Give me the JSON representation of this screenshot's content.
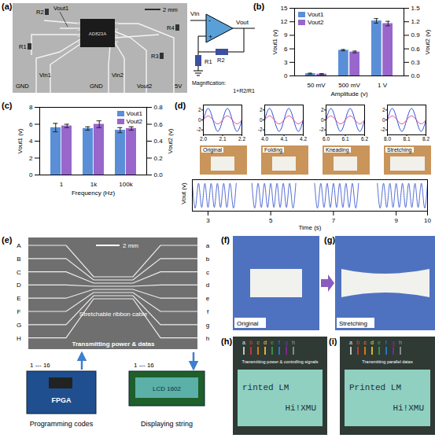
{
  "panel_labels": [
    "(a)",
    "(b)",
    "(c)",
    "(d)",
    "(e)",
    "(f)",
    "(g)",
    "(h)",
    "(i)"
  ],
  "panel_a": {
    "photo": {
      "scale_bar": "2 mm",
      "chip": "AD823A",
      "resistors": [
        "R1",
        "R2",
        "R3",
        "R4"
      ],
      "outputs": [
        "Vout1",
        "Vout2"
      ],
      "inputs": [
        "Vin1",
        "Vin2"
      ],
      "grounds": [
        "GND",
        "GND"
      ],
      "supply": "5V"
    },
    "circuit": {
      "input": "Vin",
      "minus": "-",
      "plus": "+",
      "output": "Vout",
      "resistors": [
        "R1",
        "R2"
      ],
      "note": [
        "Magnification:",
        "1+R2/R1"
      ]
    }
  },
  "chart_data": [
    {
      "type": "bar",
      "x_label": "Amplitude (v)",
      "y_label": "Vout1 (v)",
      "y2_label": "Vout2 (v)",
      "categories": [
        "50 mV",
        "500 mV",
        "1 V"
      ],
      "ylim": [
        0,
        15
      ],
      "yticks": [
        0,
        3,
        6,
        9,
        12,
        15
      ],
      "y2lim": [
        0,
        1.5
      ],
      "y2ticks": [
        {
          "value": 0,
          "label": "0.0"
        },
        0.3,
        0.6,
        0.9,
        1.2,
        1.5
      ],
      "legend": "top-left",
      "series": [
        {
          "name": "Vout1",
          "color": "#5a8fd8",
          "values": [
            0.5,
            5.7,
            12.2
          ],
          "errors": [
            0.1,
            0.15,
            0.5
          ]
        },
        {
          "name": "Vout2",
          "color": "#9966cc",
          "axis": "y2",
          "values": [
            0.04,
            0.53,
            1.16
          ],
          "errors": [
            0.01,
            0.02,
            0.05
          ]
        }
      ]
    },
    {
      "type": "bar",
      "x_label": "Frequency (Hz)",
      "y_label": "Vout1 (v)",
      "y2_label": "Vout2 (v)",
      "categories": [
        "1",
        "1k",
        "100k"
      ],
      "ylim": [
        0,
        8
      ],
      "yticks": [
        0,
        2,
        4,
        6,
        8
      ],
      "y2lim": [
        0,
        0.8
      ],
      "y2ticks": [
        {
          "value": 0,
          "label": "0.0"
        },
        0.2,
        0.4,
        0.6,
        0.8
      ],
      "legend": "top-right",
      "series": [
        {
          "name": "Vout1",
          "color": "#5a8fd8",
          "values": [
            5.6,
            5.5,
            5.3
          ],
          "errors": [
            0.5,
            0.2,
            0.3
          ]
        },
        {
          "name": "Vout2",
          "color": "#9966cc",
          "axis": "y2",
          "values": [
            0.58,
            0.6,
            0.55
          ],
          "errors": [
            0.02,
            0.04,
            0.02
          ]
        }
      ]
    },
    {
      "type": "line",
      "x_label": "Time (s)",
      "y_label": "Vout (v)",
      "xlim": [
        2.5,
        10
      ],
      "xticks": [
        3,
        5,
        7,
        9,
        10
      ],
      "ylim": [
        -3,
        3
      ],
      "tick_labels": "x",
      "x": [
        2.5,
        2.6,
        2.7,
        2.8,
        2.9,
        3.0,
        3.1,
        3.2,
        3.3,
        3.4,
        3.5,
        3.6,
        3.7,
        3.8,
        3.9,
        4.15,
        4.4,
        4.5,
        4.6,
        4.7,
        4.8,
        4.9,
        5.0,
        5.1,
        5.2,
        5.3,
        5.4,
        5.5,
        5.6,
        5.7,
        5.8,
        6.1,
        6.4,
        6.5,
        6.6,
        6.7,
        6.8,
        6.9,
        7.0,
        7.1,
        7.2,
        7.3,
        7.4,
        7.5,
        7.6,
        7.7,
        7.8,
        8.1,
        8.4,
        8.5,
        8.6,
        8.7,
        8.8,
        8.9,
        9.0,
        9.1,
        9.2,
        9.3,
        9.4,
        9.5,
        9.6,
        9.7,
        9.8,
        9.9,
        10.0
      ],
      "series": [
        {
          "color": "#2747c9",
          "values": [
            2.3,
            -2.3,
            2.3,
            -2.3,
            2.3,
            -2.3,
            2.3,
            -2.3,
            2.3,
            -2.3,
            2.3,
            -2.3,
            2.3,
            -2.3,
            2.3,
            null,
            2.3,
            -2.3,
            2.3,
            -2.3,
            2.3,
            -2.3,
            2.3,
            -2.3,
            2.3,
            -2.3,
            2.3,
            -2.3,
            2.3,
            -2.3,
            2.3,
            null,
            2.3,
            -2.3,
            2.3,
            -2.3,
            2.3,
            -2.3,
            2.3,
            -2.3,
            2.3,
            -2.3,
            2.3,
            -2.3,
            2.3,
            -2.3,
            2.3,
            null,
            2.3,
            -2.3,
            2.3,
            -2.3,
            2.3,
            -2.3,
            2.3,
            -2.3,
            2.3,
            -2.3,
            2.3,
            -2.3,
            2.3,
            -2.3,
            2.3,
            -2.3,
            2.3
          ]
        }
      ],
      "insets": [
        {
          "photo_caption": "Original",
          "xlim": [
            2,
            2.2
          ],
          "xticks": [
            {
              "value": 2,
              "label": "2.0"
            },
            2.1,
            2.2
          ],
          "ylim": [
            -3,
            3
          ],
          "yticks": [
            -2,
            0,
            2
          ],
          "x": [
            2,
            2.025,
            2.05,
            2.075,
            2.1,
            2.125,
            2.15,
            2.175,
            2.2
          ],
          "series": [
            {
              "color": "#2a4fd6",
              "values": [
                0,
                2.3,
                0,
                -2.3,
                0,
                2.3,
                0,
                -2.3,
                0
              ]
            },
            {
              "color": "#e0508c",
              "values": [
                0,
                0.8,
                0,
                -0.8,
                0,
                0.8,
                0,
                -0.8,
                0
              ]
            }
          ]
        },
        {
          "photo_caption": "Folding",
          "xlim": [
            4,
            4.2
          ],
          "xticks": [
            {
              "value": 4,
              "label": "4.0"
            },
            4.1,
            4.2
          ],
          "ylim": [
            -3,
            3
          ],
          "yticks": [
            -2,
            0,
            2
          ],
          "x": [
            4,
            4.025,
            4.05,
            4.075,
            4.1,
            4.125,
            4.15,
            4.175,
            4.2
          ],
          "series": [
            {
              "color": "#2a4fd6",
              "values": [
                0,
                2.3,
                0,
                -2.3,
                0,
                2.3,
                0,
                -2.3,
                0
              ]
            },
            {
              "color": "#e0508c",
              "values": [
                0,
                0.8,
                0,
                -0.8,
                0,
                0.8,
                0,
                -0.8,
                0
              ]
            }
          ]
        },
        {
          "photo_caption": "Kneading",
          "xlim": [
            6,
            6.2
          ],
          "xticks": [
            {
              "value": 6,
              "label": "6.0"
            },
            6.1,
            6.2
          ],
          "ylim": [
            -3,
            3
          ],
          "yticks": [
            -2,
            0,
            2
          ],
          "x": [
            6,
            6.025,
            6.05,
            6.075,
            6.1,
            6.125,
            6.15,
            6.175,
            6.2
          ],
          "series": [
            {
              "color": "#2a4fd6",
              "values": [
                0,
                2.3,
                0,
                -2.3,
                0,
                2.3,
                0,
                -2.3,
                0
              ]
            },
            {
              "color": "#e0508c",
              "values": [
                0,
                0.8,
                0,
                -0.8,
                0,
                0.8,
                0,
                -0.8,
                0
              ]
            }
          ]
        },
        {
          "photo_caption": "Stretching",
          "xlim": [
            8,
            8.2
          ],
          "xticks": [
            {
              "value": 8,
              "label": "8.0"
            },
            8.1,
            8.2
          ],
          "ylim": [
            -3,
            3
          ],
          "yticks": [
            -2,
            0,
            2
          ],
          "x": [
            8,
            8.025,
            8.05,
            8.075,
            8.1,
            8.125,
            8.15,
            8.175,
            8.2
          ],
          "series": [
            {
              "color": "#2a4fd6",
              "values": [
                0,
                2.3,
                0,
                -2.3,
                0,
                2.3,
                0,
                -2.3,
                0
              ]
            },
            {
              "color": "#e0508c",
              "values": [
                0,
                0.8,
                0,
                -0.8,
                0,
                0.8,
                0,
                -0.8,
                0
              ]
            }
          ]
        }
      ]
    }
  ],
  "panel_e": {
    "photo": {
      "scale_bar": "2 mm",
      "left_pins": [
        "A",
        "B",
        "C",
        "D",
        "E",
        "F",
        "G",
        "H"
      ],
      "right_pins": [
        "a",
        "b",
        "c",
        "d",
        "e",
        "f",
        "g",
        "h"
      ],
      "caption": "Stretchable ribbon cable",
      "note": "Transmitting power & datas"
    },
    "source": {
      "pins": "1 --- 16",
      "device": "FPGA",
      "caption": "Programming codes"
    },
    "display": {
      "pins": "1 --- 16",
      "device": "LCD 1602",
      "caption": "Displaying string"
    }
  },
  "panel_f": {
    "caption": "Original"
  },
  "panel_g": {
    "caption": "Stretching"
  },
  "panel_h": {
    "pins": "abcdefgh",
    "note": "Transmitting power & controlling signals",
    "screen": [
      "rinted LM",
      "Hi!XMU"
    ]
  },
  "panel_i": {
    "pins": "abcdefgh",
    "note": "Transmitting parallel datas",
    "screen": [
      "Printed LM",
      "Hi!XMU"
    ]
  }
}
